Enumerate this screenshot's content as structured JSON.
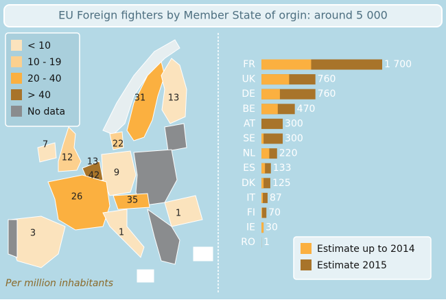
{
  "title": "EU Foreign fighters by Member State of orgin: around 5 000",
  "map": {
    "legend": [
      {
        "label": "< 10",
        "color": "#fbe3bd"
      },
      {
        "label": "10 - 19",
        "color": "#fcd08e"
      },
      {
        "label": "20 - 40",
        "color": "#fbb040"
      },
      {
        "label": "> 40",
        "color": "#a8742a"
      },
      {
        "label": "No data",
        "color": "#8a8c8e"
      }
    ],
    "labels": [
      "7",
      "12",
      "13",
      "42",
      "22",
      "31",
      "13",
      "9",
      "26",
      "35",
      "1",
      "3",
      "1"
    ],
    "note": "Per million inhabitants"
  },
  "chart_data": {
    "type": "bar",
    "orientation": "horizontal",
    "categories": [
      "FR",
      "UK",
      "DE",
      "BE",
      "AT",
      "SE",
      "NL",
      "ES",
      "DK",
      "IT",
      "FI",
      "IE",
      "RO"
    ],
    "series": [
      {
        "name": "Estimate up to 2014",
        "color": "#fbb040",
        "values": [
          700,
          390,
          260,
          230,
          0,
          30,
          110,
          50,
          30,
          20,
          10,
          30,
          1
        ]
      },
      {
        "name": "Estimate 2015",
        "color": "#a8742a",
        "values": [
          1700,
          760,
          760,
          470,
          300,
          300,
          220,
          133,
          125,
          87,
          70,
          30,
          1
        ],
        "value_labels": [
          "1 700",
          "760",
          "760",
          "470",
          "300",
          "300",
          "220",
          "133",
          "125",
          "87",
          "70",
          "30",
          "1"
        ]
      }
    ]
  }
}
